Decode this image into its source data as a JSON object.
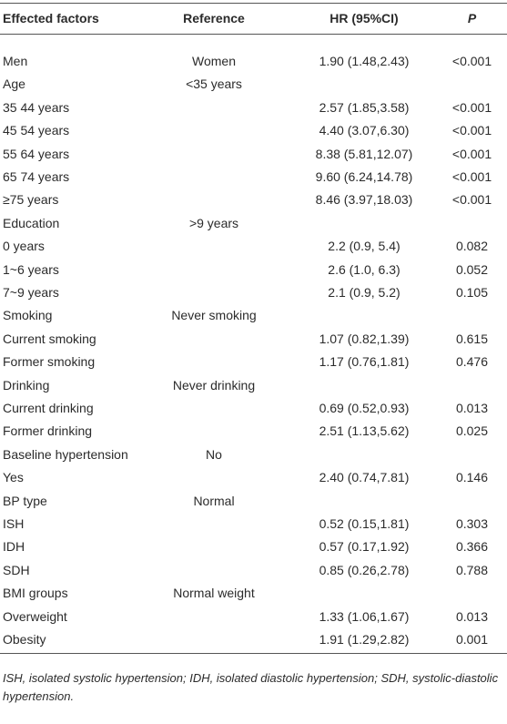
{
  "table": {
    "header": [
      "Effected factors",
      "Reference",
      "HR (95%CI)",
      "P"
    ],
    "rows": [
      {
        "factor": "Men",
        "reference": "Women",
        "hr": "1.90 (1.48,2.43)",
        "p": "<0.001"
      },
      {
        "factor": "Age",
        "reference": "<35 years"
      },
      {
        "factor": "35 44 years",
        "hr": "2.57 (1.85,3.58)",
        "p": "<0.001"
      },
      {
        "factor": "45 54 years",
        "hr": "4.40 (3.07,6.30)",
        "p": "<0.001"
      },
      {
        "factor": "55 64 years",
        "hr": "8.38 (5.81,12.07)",
        "p": "<0.001"
      },
      {
        "factor": "65 74 years",
        "hr": "9.60 (6.24,14.78)",
        "p": "<0.001"
      },
      {
        "factor": "≥75 years",
        "hr": "8.46 (3.97,18.03)",
        "p": "<0.001"
      },
      {
        "factor": "Education",
        "reference": ">9 years"
      },
      {
        "factor": "0 years",
        "hr": "2.2 (0.9, 5.4)",
        "p": "0.082"
      },
      {
        "factor": "1~6 years",
        "hr": "2.6 (1.0, 6.3)",
        "p": "0.052"
      },
      {
        "factor": "7~9 years",
        "hr": "2.1 (0.9, 5.2)",
        "p": "0.105"
      },
      {
        "factor": "Smoking",
        "reference": "Never smoking"
      },
      {
        "factor": "Current smoking",
        "hr": "1.07 (0.82,1.39)",
        "p": "0.615"
      },
      {
        "factor": "Former smoking",
        "hr": "1.17 (0.76,1.81)",
        "p": "0.476"
      },
      {
        "factor": "Drinking",
        "reference": "Never drinking"
      },
      {
        "factor": "Current drinking",
        "hr": "0.69 (0.52,0.93)",
        "p": "0.013"
      },
      {
        "factor": "Former drinking",
        "hr": "2.51 (1.13,5.62)",
        "p": "0.025"
      },
      {
        "factor": "Baseline hypertension",
        "reference": "No"
      },
      {
        "factor": "Yes",
        "hr": "2.40 (0.74,7.81)",
        "p": "0.146"
      },
      {
        "factor": "BP type",
        "reference": "Normal"
      },
      {
        "factor": "ISH",
        "hr": "0.52 (0.15,1.81)",
        "p": "0.303"
      },
      {
        "factor": "IDH",
        "hr": "0.57 (0.17,1.92)",
        "p": "0.366"
      },
      {
        "factor": "SDH",
        "hr": "0.85 (0.26,2.78)",
        "p": "0.788"
      },
      {
        "factor": "BMI groups",
        "reference": "Normal weight"
      },
      {
        "factor": "Overweight",
        "hr": "1.33 (1.06,1.67)",
        "p": "0.013"
      },
      {
        "factor": "Obesity",
        "hr": "1.91 (1.29,2.82)",
        "p": "0.001"
      }
    ],
    "footnote": "ISH, isolated systolic hypertension; IDH, isolated diastolic hypertension; SDH, systolic-diastolic hypertension."
  }
}
